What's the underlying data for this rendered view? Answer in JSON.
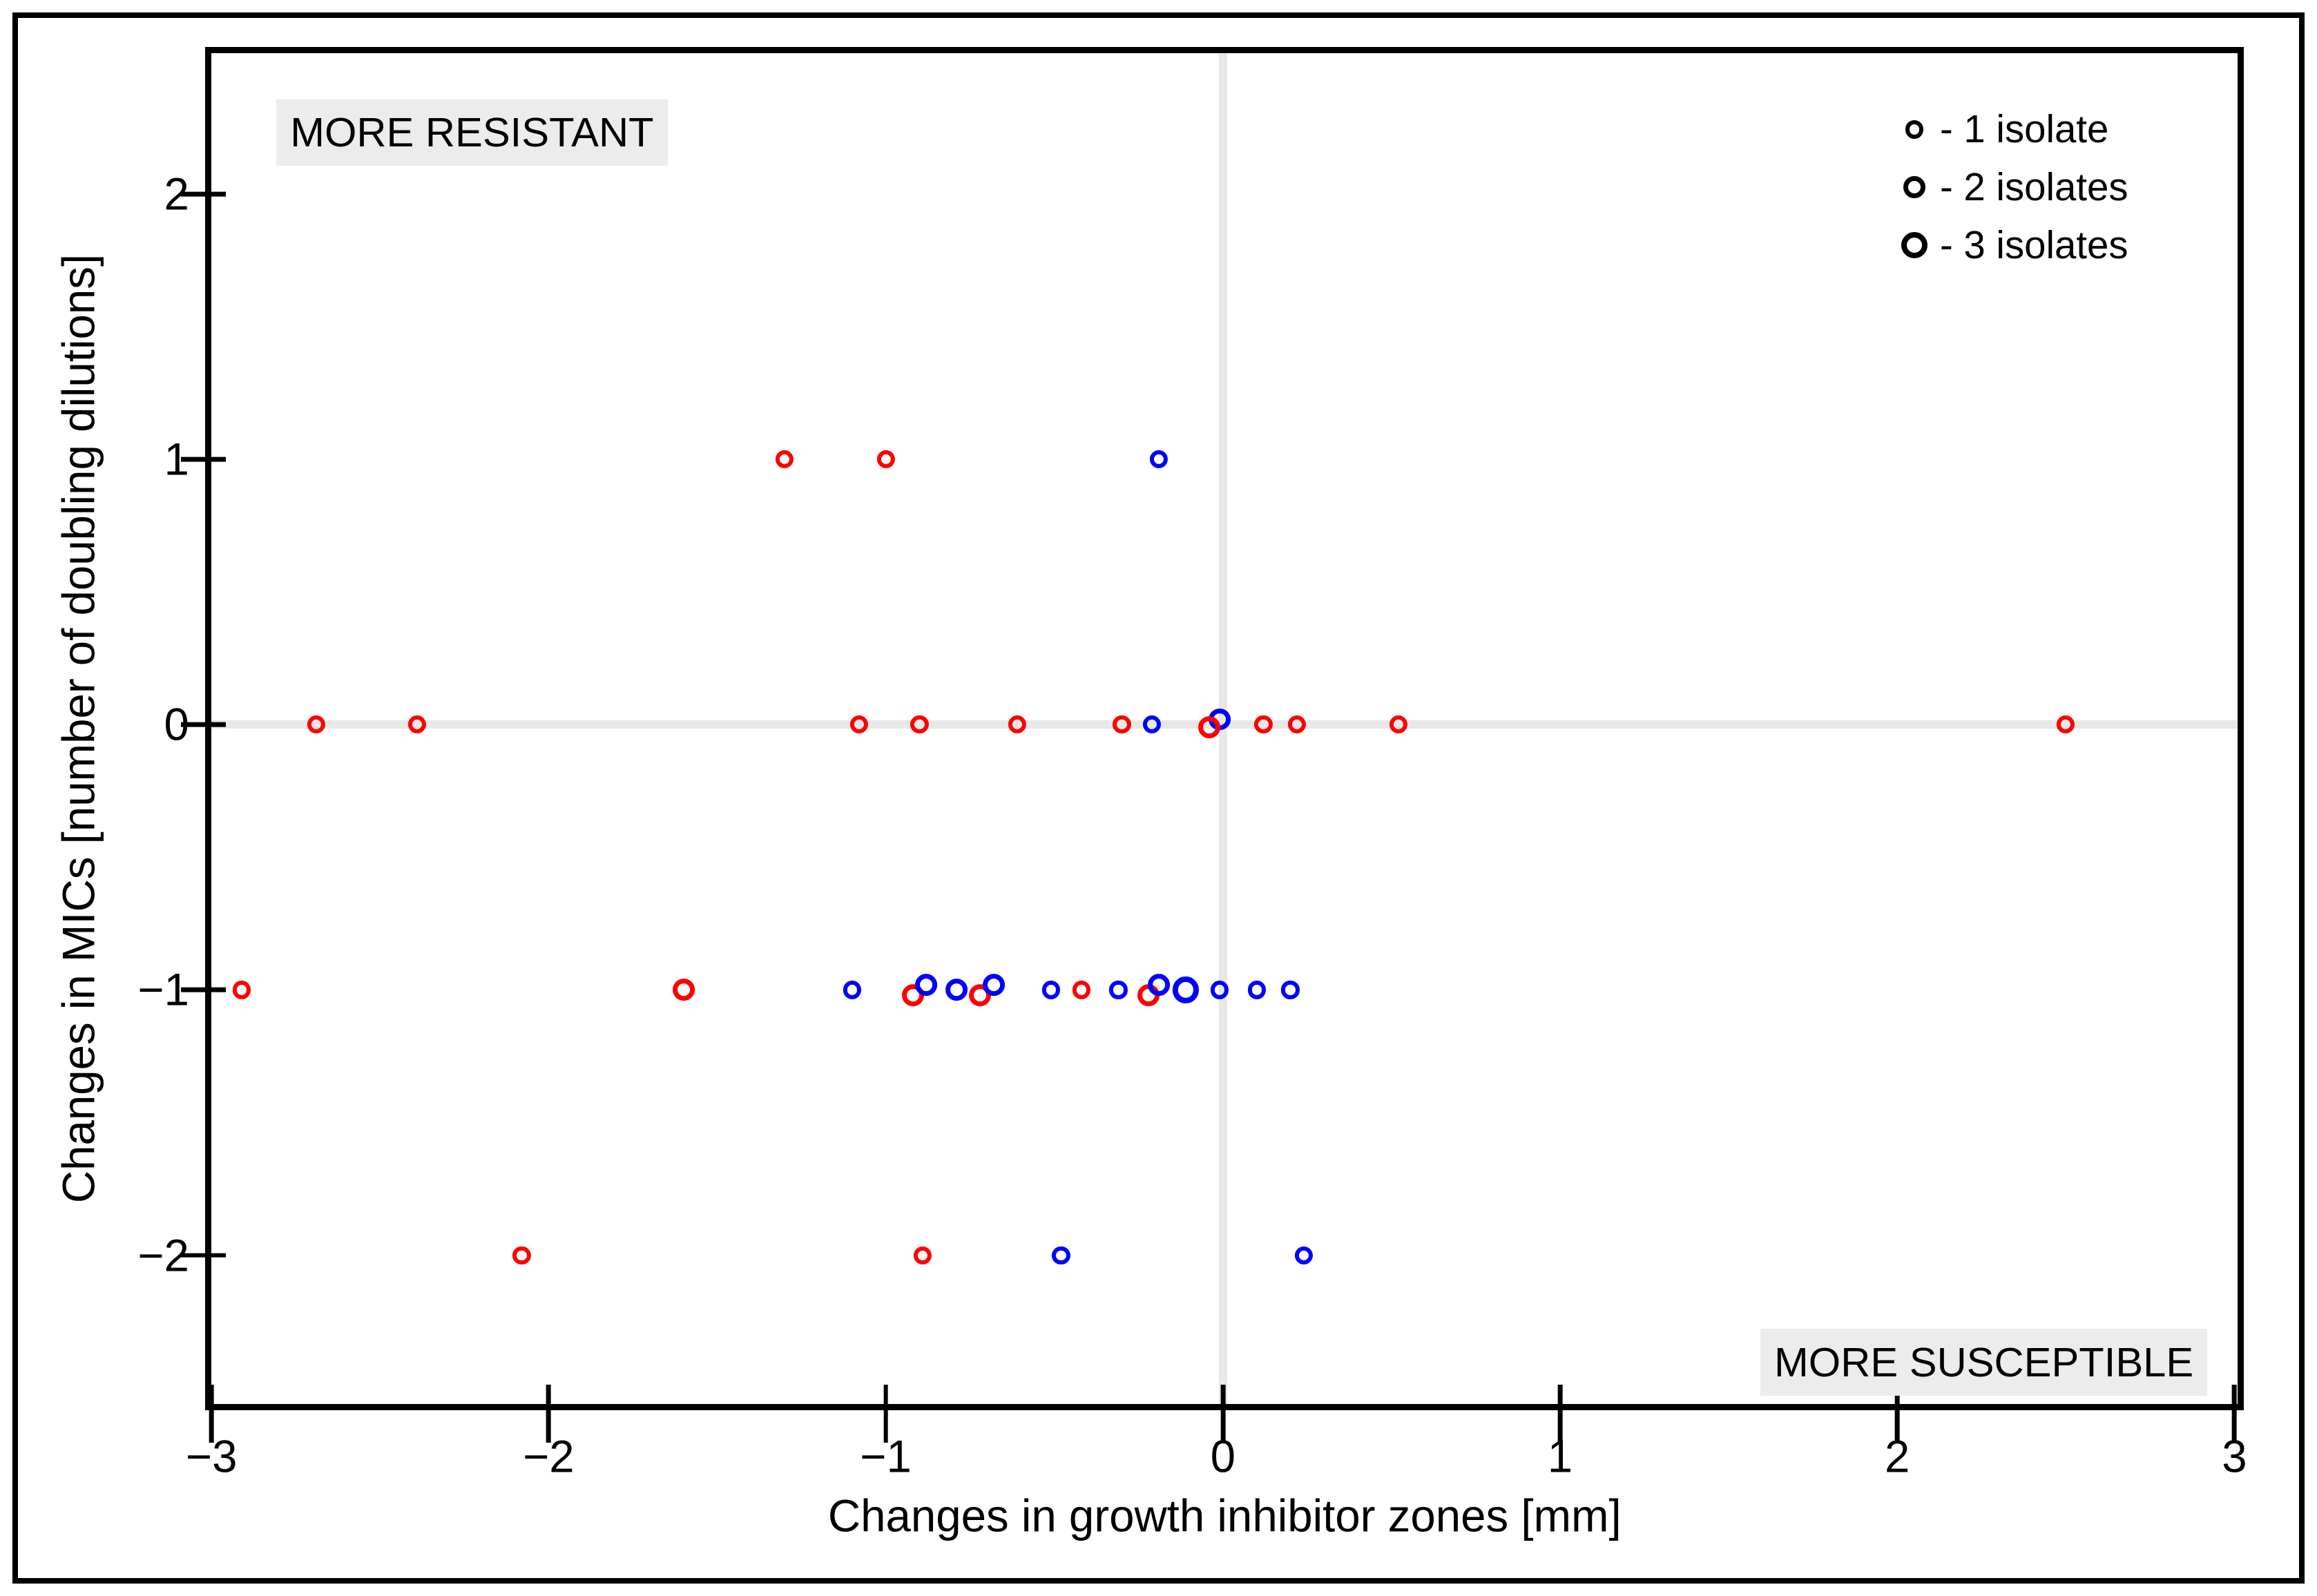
{
  "figure": {
    "more_resistant_label": "MORE RESISTANT",
    "more_susceptible_label": "MORE SUSCEPTIBLE"
  },
  "chart_data": {
    "type": "scatter",
    "title": "",
    "xlabel": "Changes in growth inhibitor zones [mm]",
    "ylabel": "Changes in MICs [number of doubling dilutions]",
    "xlim": [
      -3,
      3.01
    ],
    "ylim": [
      -2.56,
      2.53
    ],
    "grid": {
      "x_zero_line": true,
      "y_zero_line": true,
      "color": "#e8e8e8"
    },
    "xticks": [
      {
        "v": -3,
        "label": "−3"
      },
      {
        "v": -2,
        "label": "−2"
      },
      {
        "v": -1,
        "label": "−1"
      },
      {
        "v": 0,
        "label": "0"
      },
      {
        "v": 1,
        "label": "1"
      },
      {
        "v": 2,
        "label": "2"
      },
      {
        "v": 3,
        "label": "3"
      }
    ],
    "yticks": [
      {
        "v": 2,
        "label": "2"
      },
      {
        "v": 1,
        "label": "1"
      },
      {
        "v": 0,
        "label": "0"
      },
      {
        "v": -1,
        "label": "−1"
      },
      {
        "v": -2,
        "label": "−2"
      }
    ],
    "legend": {
      "position": "top-right",
      "entries": [
        {
          "isolates": 1,
          "label": "- 1 isolate"
        },
        {
          "isolates": 2,
          "label": "- 2 isolates"
        },
        {
          "isolates": 3,
          "label": "- 3 isolates"
        }
      ]
    },
    "series": [
      {
        "id": "red",
        "color": "#ff0000"
      },
      {
        "id": "blue",
        "color": "#0000ff"
      }
    ],
    "points": [
      {
        "x": -1.3,
        "y": 1.0,
        "series": "red",
        "isolates": 1
      },
      {
        "x": -1.0,
        "y": 1.0,
        "series": "red",
        "isolates": 1
      },
      {
        "x": -0.19,
        "y": 1.0,
        "series": "blue",
        "isolates": 1
      },
      {
        "x": -2.69,
        "y": 0.0,
        "series": "red",
        "isolates": 1
      },
      {
        "x": -2.39,
        "y": 0.0,
        "series": "red",
        "isolates": 1
      },
      {
        "x": -1.08,
        "y": 0.0,
        "series": "red",
        "isolates": 1
      },
      {
        "x": -0.9,
        "y": 0.0,
        "series": "red",
        "isolates": 1
      },
      {
        "x": -0.61,
        "y": 0.0,
        "series": "red",
        "isolates": 1
      },
      {
        "x": -0.3,
        "y": 0.0,
        "series": "red",
        "isolates": 1
      },
      {
        "x": -0.21,
        "y": 0.0,
        "series": "blue",
        "isolates": 1
      },
      {
        "x": -0.01,
        "y": 0.02,
        "series": "blue",
        "isolates": 2
      },
      {
        "x": -0.04,
        "y": -0.01,
        "series": "red",
        "isolates": 2
      },
      {
        "x": 0.12,
        "y": 0.0,
        "series": "red",
        "isolates": 1
      },
      {
        "x": 0.22,
        "y": 0.0,
        "series": "red",
        "isolates": 1
      },
      {
        "x": 0.52,
        "y": 0.0,
        "series": "red",
        "isolates": 1
      },
      {
        "x": 2.5,
        "y": 0.0,
        "series": "red",
        "isolates": 1
      },
      {
        "x": -2.91,
        "y": -1.0,
        "series": "red",
        "isolates": 1
      },
      {
        "x": -1.6,
        "y": -1.0,
        "series": "red",
        "isolates": 2
      },
      {
        "x": -1.1,
        "y": -1.0,
        "series": "blue",
        "isolates": 1
      },
      {
        "x": -0.92,
        "y": -1.02,
        "series": "red",
        "isolates": 2
      },
      {
        "x": -0.88,
        "y": -0.98,
        "series": "blue",
        "isolates": 2
      },
      {
        "x": -0.79,
        "y": -1.0,
        "series": "blue",
        "isolates": 2
      },
      {
        "x": -0.72,
        "y": -1.02,
        "series": "red",
        "isolates": 2
      },
      {
        "x": -0.68,
        "y": -0.98,
        "series": "blue",
        "isolates": 2
      },
      {
        "x": -0.51,
        "y": -1.0,
        "series": "blue",
        "isolates": 1
      },
      {
        "x": -0.42,
        "y": -1.0,
        "series": "red",
        "isolates": 1
      },
      {
        "x": -0.31,
        "y": -1.0,
        "series": "blue",
        "isolates": 1
      },
      {
        "x": -0.22,
        "y": -1.02,
        "series": "red",
        "isolates": 2
      },
      {
        "x": -0.19,
        "y": -0.98,
        "series": "blue",
        "isolates": 2
      },
      {
        "x": -0.11,
        "y": -1.0,
        "series": "blue",
        "isolates": 3
      },
      {
        "x": -0.01,
        "y": -1.0,
        "series": "blue",
        "isolates": 1
      },
      {
        "x": 0.1,
        "y": -1.0,
        "series": "blue",
        "isolates": 1
      },
      {
        "x": 0.2,
        "y": -1.0,
        "series": "blue",
        "isolates": 1
      },
      {
        "x": -2.08,
        "y": -2.0,
        "series": "red",
        "isolates": 1
      },
      {
        "x": -0.89,
        "y": -2.0,
        "series": "red",
        "isolates": 1
      },
      {
        "x": -0.48,
        "y": -2.0,
        "series": "blue",
        "isolates": 1
      },
      {
        "x": 0.24,
        "y": -2.0,
        "series": "blue",
        "isolates": 1
      }
    ]
  }
}
